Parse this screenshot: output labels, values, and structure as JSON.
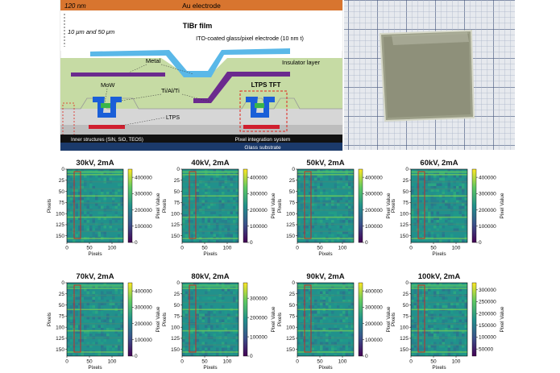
{
  "diagram": {
    "electrode": "Au electrode",
    "electrode_thickness": "120 nm",
    "film": "TlBr film",
    "film_thickness": "10 μm and 50 μm",
    "ito": "ITO-coated glass/pixel electrode (10 nm t)",
    "metal": "Metal",
    "insulator": "Insulator layer",
    "mow": "MoW",
    "tialti": "Ti/Al/Ti",
    "ltps_tft": "LTPS TFT",
    "ltps": "LTPS",
    "inner": "Inner structures (SiN, SiO, TEOS)",
    "pixel_system": "Pixel integration system",
    "glass": "Glass substrate"
  },
  "chart_data": [
    {
      "type": "heatmap",
      "title": "30kV, 2mA",
      "xlabel": "Pixels",
      "ylabel": "Pixels",
      "colorbar_label": "Pixel Value",
      "xticks": [
        "0",
        "50",
        "100"
      ],
      "yticks": [
        "0",
        "25",
        "50",
        "75",
        "100",
        "125",
        "150"
      ],
      "colorbar_ticks": [
        "400000",
        "300000",
        "200000",
        "100000",
        "0"
      ],
      "clim": [
        0,
        450000
      ],
      "roi": "red rectangle"
    },
    {
      "type": "heatmap",
      "title": "40kV, 2mA",
      "xlabel": "Pixels",
      "ylabel": "Pixels",
      "colorbar_label": "Pixel Value",
      "xticks": [
        "0",
        "50",
        "100"
      ],
      "yticks": [
        "0",
        "25",
        "50",
        "75",
        "100",
        "125",
        "150"
      ],
      "colorbar_ticks": [
        "400000",
        "300000",
        "200000",
        "100000",
        "0"
      ],
      "clim": [
        0,
        450000
      ],
      "roi": "red rectangle"
    },
    {
      "type": "heatmap",
      "title": "50kV, 2mA",
      "xlabel": "Pixels",
      "ylabel": "Pixels",
      "colorbar_label": "Pixel Value",
      "xticks": [
        "0",
        "50",
        "100"
      ],
      "yticks": [
        "0",
        "25",
        "50",
        "75",
        "100",
        "125",
        "150"
      ],
      "colorbar_ticks": [
        "400000",
        "300000",
        "200000",
        "100000",
        "0"
      ],
      "clim": [
        0,
        450000
      ],
      "roi": "red rectangle"
    },
    {
      "type": "heatmap",
      "title": "60kV, 2mA",
      "xlabel": "Pixels",
      "ylabel": "Pixels",
      "colorbar_label": "Pixel Value",
      "xticks": [
        "0",
        "50",
        "100"
      ],
      "yticks": [
        "0",
        "25",
        "50",
        "75",
        "100",
        "125",
        "150"
      ],
      "colorbar_ticks": [
        "400000",
        "300000",
        "200000",
        "100000",
        "0"
      ],
      "clim": [
        0,
        450000
      ],
      "roi": "red rectangle"
    },
    {
      "type": "heatmap",
      "title": "70kV, 2mA",
      "xlabel": "Pixels",
      "ylabel": "Pixels",
      "colorbar_label": "Pixel Value",
      "xticks": [
        "0",
        "50",
        "100"
      ],
      "yticks": [
        "0",
        "25",
        "50",
        "75",
        "100",
        "125",
        "150"
      ],
      "colorbar_ticks": [
        "400000",
        "300000",
        "200000",
        "100000",
        "0"
      ],
      "clim": [
        0,
        450000
      ],
      "roi": "red rectangle"
    },
    {
      "type": "heatmap",
      "title": "80kV, 2mA",
      "xlabel": "Pixels",
      "ylabel": "Pixels",
      "colorbar_label": "Pixel Value",
      "xticks": [
        "0",
        "50",
        "100"
      ],
      "yticks": [
        "0",
        "25",
        "50",
        "75",
        "100",
        "125",
        "150"
      ],
      "colorbar_ticks": [
        "300000",
        "200000",
        "100000",
        "0"
      ],
      "clim": [
        0,
        380000
      ],
      "roi": "red rectangle"
    },
    {
      "type": "heatmap",
      "title": "90kV, 2mA",
      "xlabel": "Pixels",
      "ylabel": "Pixels",
      "colorbar_label": "Pixel Value",
      "xticks": [
        "0",
        "50",
        "100"
      ],
      "yticks": [
        "0",
        "25",
        "50",
        "75",
        "100",
        "125",
        "150"
      ],
      "colorbar_ticks": [
        "400000",
        "300000",
        "200000",
        "100000",
        "0"
      ],
      "clim": [
        0,
        450000
      ],
      "roi": "red rectangle"
    },
    {
      "type": "heatmap",
      "title": "100kV, 2mA",
      "xlabel": "Pixels",
      "ylabel": "Pixels",
      "colorbar_label": "Pixel Value",
      "xticks": [
        "0",
        "50",
        "100"
      ],
      "yticks": [
        "0",
        "25",
        "50",
        "75",
        "100",
        "125",
        "150"
      ],
      "colorbar_ticks": [
        "300000",
        "250000",
        "200000",
        "150000",
        "100000",
        "50000"
      ],
      "clim": [
        20000,
        330000
      ],
      "roi": "red rectangle"
    }
  ]
}
